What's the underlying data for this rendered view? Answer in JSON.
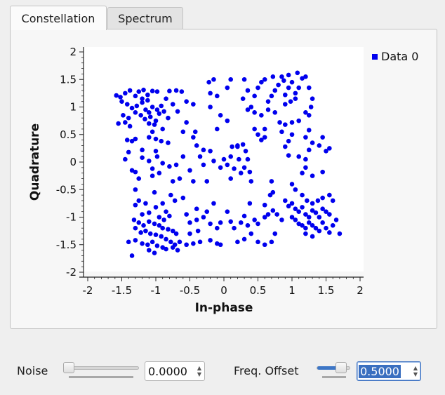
{
  "tabs": [
    {
      "label": "Constellation",
      "active": true
    },
    {
      "label": "Spectrum",
      "active": false
    }
  ],
  "chart_data": {
    "type": "scatter",
    "title": "",
    "xlabel": "In-phase",
    "ylabel": "Quadrature",
    "xlim": [
      -2,
      2
    ],
    "ylim": [
      -2,
      2
    ],
    "x_ticks": [
      "-2",
      "-1.5",
      "-1",
      "-0.5",
      "0",
      "0.5",
      "1",
      "1.5",
      "2"
    ],
    "y_ticks": [
      "2",
      "1.5",
      "1",
      "0.5",
      "0",
      "-0.5",
      "-1",
      "-1.5",
      "-2"
    ],
    "grid": false,
    "legend_position": "top-right",
    "series": [
      {
        "name": "Data 0",
        "color": "#0000ee",
        "points": [
          [
            -1.58,
            1.21
          ],
          [
            -1.52,
            1.18
          ],
          [
            -1.45,
            1.25
          ],
          [
            -1.38,
            1.3
          ],
          [
            -1.3,
            1.2
          ],
          [
            -1.25,
            1.28
          ],
          [
            -1.18,
            1.31
          ],
          [
            -1.12,
            1.22
          ],
          [
            -1.05,
            1.29
          ],
          [
            -0.98,
            1.28
          ],
          [
            -1.5,
            1.1
          ],
          [
            -1.42,
            1.05
          ],
          [
            -1.35,
            0.98
          ],
          [
            -1.28,
            1.02
          ],
          [
            -1.2,
            1.08
          ],
          [
            -1.15,
            0.95
          ],
          [
            -1.1,
            0.9
          ],
          [
            -1.05,
            1.0
          ],
          [
            -0.98,
            0.95
          ],
          [
            -0.92,
            1.02
          ],
          [
            -1.48,
            0.85
          ],
          [
            -1.4,
            0.8
          ],
          [
            -1.3,
            0.9
          ],
          [
            -1.22,
            0.85
          ],
          [
            -1.16,
            0.78
          ],
          [
            -1.08,
            0.82
          ],
          [
            -1.0,
            0.75
          ],
          [
            -0.95,
            0.88
          ],
          [
            -0.88,
            0.92
          ],
          [
            -0.82,
            0.8
          ],
          [
            -1.55,
            0.7
          ],
          [
            -1.45,
            0.72
          ],
          [
            -1.38,
            0.65
          ],
          [
            -1.1,
            0.7
          ],
          [
            -1.02,
            0.68
          ],
          [
            -0.9,
            0.6
          ],
          [
            -1.2,
            1.15
          ],
          [
            -1.12,
            1.12
          ],
          [
            -0.85,
            1.15
          ],
          [
            -0.75,
            1.05
          ],
          [
            -0.8,
            1.29
          ],
          [
            -0.7,
            1.3
          ],
          [
            -0.62,
            1.28
          ],
          [
            -0.55,
            1.1
          ],
          [
            -0.45,
            1.05
          ],
          [
            -0.68,
            0.92
          ],
          [
            -0.55,
            0.72
          ],
          [
            -0.42,
            0.55
          ],
          [
            -0.6,
            0.55
          ],
          [
            -1.05,
            0.55
          ],
          [
            -1.1,
            0.45
          ],
          [
            -1.0,
            0.42
          ],
          [
            -0.92,
            0.38
          ],
          [
            -1.42,
            0.4
          ],
          [
            -1.35,
            0.38
          ],
          [
            -1.3,
            0.42
          ],
          [
            -0.82,
            0.35
          ],
          [
            -1.2,
            0.22
          ],
          [
            -1.4,
            0.18
          ],
          [
            -1.0,
            0.2
          ],
          [
            -1.45,
            0.05
          ],
          [
            -1.2,
            0.08
          ],
          [
            -1.1,
            0.02
          ],
          [
            -0.98,
            0.1
          ],
          [
            -0.9,
            -0.02
          ],
          [
            -0.8,
            -0.08
          ],
          [
            -1.35,
            -0.15
          ],
          [
            -1.3,
            -0.18
          ],
          [
            -1.05,
            -0.12
          ],
          [
            -0.95,
            -0.2
          ],
          [
            -1.25,
            -0.3
          ],
          [
            -1.05,
            -0.25
          ],
          [
            -0.75,
            -0.35
          ],
          [
            -0.65,
            -0.3
          ],
          [
            -1.3,
            -0.5
          ],
          [
            -1.02,
            -0.55
          ],
          [
            -0.78,
            -0.6
          ],
          [
            -0.72,
            -0.7
          ],
          [
            -0.6,
            -0.65
          ],
          [
            -1.25,
            -0.7
          ],
          [
            -1.3,
            -0.78
          ],
          [
            -1.15,
            -0.75
          ],
          [
            -1.0,
            -0.82
          ],
          [
            -0.9,
            -0.75
          ],
          [
            -0.85,
            -0.9
          ],
          [
            -1.2,
            -0.95
          ],
          [
            -1.1,
            -0.92
          ],
          [
            -0.95,
            -1.0
          ],
          [
            -0.88,
            -1.05
          ],
          [
            -0.8,
            -0.98
          ],
          [
            -1.32,
            -1.05
          ],
          [
            -1.25,
            -1.1
          ],
          [
            -1.18,
            -1.15
          ],
          [
            -1.1,
            -1.08
          ],
          [
            -1.02,
            -1.12
          ],
          [
            -0.95,
            -1.15
          ],
          [
            -0.9,
            -1.2
          ],
          [
            -0.82,
            -1.22
          ],
          [
            -0.75,
            -1.25
          ],
          [
            -0.7,
            -1.3
          ],
          [
            -1.3,
            -1.2
          ],
          [
            -1.22,
            -1.28
          ],
          [
            -1.15,
            -1.25
          ],
          [
            -1.08,
            -1.3
          ],
          [
            -1.0,
            -1.32
          ],
          [
            -0.92,
            -1.35
          ],
          [
            -0.85,
            -1.4
          ],
          [
            -0.78,
            -1.45
          ],
          [
            -0.72,
            -1.5
          ],
          [
            -0.65,
            -1.45
          ],
          [
            -1.4,
            -1.45
          ],
          [
            -1.3,
            -1.42
          ],
          [
            -1.2,
            -1.48
          ],
          [
            -1.12,
            -1.5
          ],
          [
            -1.05,
            -1.45
          ],
          [
            -0.98,
            -1.52
          ],
          [
            -0.9,
            -1.55
          ],
          [
            -0.85,
            -1.58
          ],
          [
            -0.75,
            -1.55
          ],
          [
            -0.68,
            -1.6
          ],
          [
            -1.35,
            -1.7
          ],
          [
            -1.1,
            -1.6
          ],
          [
            -1.02,
            -1.65
          ],
          [
            -0.55,
            -1.5
          ],
          [
            -0.45,
            -1.48
          ],
          [
            -0.35,
            -1.45
          ],
          [
            -0.2,
            -1.42
          ],
          [
            -0.1,
            -1.48
          ],
          [
            -0.5,
            -1.3
          ],
          [
            -0.38,
            -1.25
          ],
          [
            -0.5,
            -1.1
          ],
          [
            -0.4,
            -1.05
          ],
          [
            -0.3,
            -1.0
          ],
          [
            -0.2,
            -1.12
          ],
          [
            -0.1,
            -1.2
          ],
          [
            -0.05,
            -1.1
          ],
          [
            -0.55,
            -0.95
          ],
          [
            -0.4,
            -0.85
          ],
          [
            -0.25,
            -0.9
          ],
          [
            -0.15,
            -0.75
          ],
          [
            0.05,
            -0.9
          ],
          [
            0.1,
            -1.08
          ],
          [
            0.15,
            -1.2
          ],
          [
            0.25,
            -1.1
          ],
          [
            0.35,
            -1.15
          ],
          [
            0.45,
            -1.05
          ],
          [
            0.5,
            -1.12
          ],
          [
            0.6,
            -1.0
          ],
          [
            0.4,
            -1.3
          ],
          [
            0.5,
            -1.45
          ],
          [
            0.3,
            -1.4
          ],
          [
            0.2,
            -1.45
          ],
          [
            -0.05,
            -1.5
          ],
          [
            0.6,
            -1.5
          ],
          [
            0.7,
            -1.45
          ],
          [
            0.75,
            -1.3
          ],
          [
            0.3,
            -0.98
          ],
          [
            0.38,
            -0.75
          ],
          [
            0.6,
            -0.78
          ],
          [
            0.65,
            -0.95
          ],
          [
            0.72,
            -0.88
          ],
          [
            0.78,
            -0.95
          ],
          [
            0.85,
            -1.05
          ],
          [
            0.68,
            -0.6
          ],
          [
            0.72,
            -0.55
          ],
          [
            0.7,
            -0.35
          ],
          [
            0.9,
            -0.7
          ],
          [
            0.95,
            -0.8
          ],
          [
            1.0,
            -0.75
          ],
          [
            1.05,
            -0.85
          ],
          [
            1.1,
            -0.9
          ],
          [
            1.15,
            -0.82
          ],
          [
            1.2,
            -0.95
          ],
          [
            1.25,
            -1.0
          ],
          [
            1.3,
            -0.88
          ],
          [
            1.35,
            -0.92
          ],
          [
            1.4,
            -1.0
          ],
          [
            1.45,
            -0.85
          ],
          [
            1.5,
            -0.9
          ],
          [
            1.55,
            -0.95
          ],
          [
            1.0,
            -1.0
          ],
          [
            1.05,
            -1.05
          ],
          [
            1.1,
            -1.12
          ],
          [
            1.15,
            -1.15
          ],
          [
            1.2,
            -1.2
          ],
          [
            1.25,
            -1.1
          ],
          [
            1.3,
            -1.15
          ],
          [
            1.35,
            -1.2
          ],
          [
            1.4,
            -1.25
          ],
          [
            1.45,
            -1.1
          ],
          [
            1.5,
            -1.2
          ],
          [
            1.55,
            -1.28
          ],
          [
            1.6,
            -1.15
          ],
          [
            1.65,
            -1.05
          ],
          [
            1.7,
            -1.3
          ],
          [
            1.3,
            -1.35
          ],
          [
            1.2,
            -1.3
          ],
          [
            1.6,
            -0.7
          ],
          [
            1.55,
            -0.6
          ],
          [
            1.45,
            -0.65
          ],
          [
            1.38,
            -0.7
          ],
          [
            1.3,
            -0.75
          ],
          [
            1.22,
            -0.7
          ],
          [
            1.15,
            -0.6
          ],
          [
            1.05,
            -0.5
          ],
          [
            1.0,
            -0.4
          ],
          [
            1.15,
            -0.2
          ],
          [
            1.2,
            -0.1
          ],
          [
            1.3,
            -0.25
          ],
          [
            1.45,
            -0.18
          ],
          [
            1.1,
            0.1
          ],
          [
            1.2,
            0.05
          ],
          [
            1.25,
            0.22
          ],
          [
            1.3,
            0.35
          ],
          [
            1.4,
            0.3
          ],
          [
            1.45,
            0.45
          ],
          [
            1.5,
            0.2
          ],
          [
            1.55,
            0.25
          ],
          [
            1.2,
            0.45
          ],
          [
            1.25,
            0.58
          ],
          [
            1.0,
            0.5
          ],
          [
            0.95,
            0.38
          ],
          [
            0.9,
            0.28
          ],
          [
            0.95,
            0.12
          ],
          [
            0.85,
            0.55
          ],
          [
            0.82,
            0.72
          ],
          [
            0.9,
            0.68
          ],
          [
            1.0,
            0.72
          ],
          [
            1.1,
            0.75
          ],
          [
            1.2,
            0.9
          ],
          [
            1.25,
            0.85
          ],
          [
            1.28,
            1.0
          ],
          [
            1.3,
            1.15
          ],
          [
            1.25,
            1.35
          ],
          [
            1.2,
            1.55
          ],
          [
            1.1,
            1.35
          ],
          [
            1.05,
            1.25
          ],
          [
            1.0,
            1.45
          ],
          [
            0.95,
            1.35
          ],
          [
            0.9,
            1.22
          ],
          [
            0.85,
            1.55
          ],
          [
            0.8,
            1.4
          ],
          [
            0.75,
            1.3
          ],
          [
            0.7,
            1.2
          ],
          [
            0.65,
            1.1
          ],
          [
            0.6,
            1.5
          ],
          [
            0.55,
            1.45
          ],
          [
            0.5,
            1.35
          ],
          [
            0.45,
            1.2
          ],
          [
            0.4,
            1.0
          ],
          [
            0.35,
            0.95
          ],
          [
            0.45,
            0.9
          ],
          [
            0.55,
            0.85
          ],
          [
            0.65,
            0.95
          ],
          [
            0.75,
            0.9
          ],
          [
            0.9,
            1.05
          ],
          [
            0.98,
            1.1
          ],
          [
            1.05,
            1.15
          ],
          [
            0.88,
            1.48
          ],
          [
            0.95,
            1.58
          ],
          [
            1.08,
            1.62
          ],
          [
            1.15,
            1.52
          ],
          [
            0.72,
            1.55
          ],
          [
            0.3,
            1.5
          ],
          [
            0.35,
            1.3
          ],
          [
            0.28,
            1.15
          ],
          [
            0.45,
            0.6
          ],
          [
            0.5,
            0.5
          ],
          [
            0.55,
            0.4
          ],
          [
            0.6,
            0.6
          ],
          [
            0.1,
            1.5
          ],
          [
            0.05,
            1.35
          ],
          [
            -0.15,
            1.5
          ],
          [
            -0.22,
            1.45
          ],
          [
            -0.2,
            1.25
          ],
          [
            -0.1,
            1.2
          ],
          [
            -0.2,
            1.0
          ],
          [
            -0.05,
            0.85
          ],
          [
            0.05,
            0.75
          ],
          [
            -0.1,
            0.6
          ],
          [
            -0.2,
            0.2
          ],
          [
            -0.3,
            0.22
          ],
          [
            -0.35,
            0.1
          ],
          [
            -0.3,
            -0.05
          ],
          [
            -0.15,
            0.02
          ],
          [
            -0.05,
            -0.1
          ],
          [
            0.0,
            0.05
          ],
          [
            0.05,
            -0.05
          ],
          [
            0.1,
            0.1
          ],
          [
            0.15,
            -0.12
          ],
          [
            0.2,
            0.3
          ],
          [
            0.28,
            0.32
          ],
          [
            0.32,
            0.2
          ],
          [
            0.35,
            0.05
          ],
          [
            0.25,
            -0.2
          ],
          [
            0.3,
            -0.1
          ],
          [
            0.38,
            -0.18
          ],
          [
            -0.4,
            0.3
          ],
          [
            -0.45,
            0.45
          ],
          [
            -0.5,
            -0.15
          ],
          [
            -0.45,
            -0.35
          ],
          [
            0.4,
            -0.35
          ],
          [
            0.2,
            0.28
          ],
          [
            0.22,
            0.05
          ],
          [
            0.12,
            0.28
          ],
          [
            -0.25,
            -0.35
          ],
          [
            0.6,
            0.45
          ],
          [
            -0.6,
            0.1
          ],
          [
            -0.7,
            -0.05
          ],
          [
            0.1,
            -0.3
          ]
        ]
      }
    ]
  },
  "controls": {
    "noise": {
      "label": "Noise",
      "value": "0.0000",
      "fraction": 0.0
    },
    "freq_offset": {
      "label": "Freq. Offset",
      "value": "0.5000",
      "fraction": 0.85
    }
  },
  "colors": {
    "accent": "#3a6fc0",
    "marker": "#0000ee"
  },
  "icons": {
    "spin_up": "▲",
    "spin_down": "▼"
  }
}
